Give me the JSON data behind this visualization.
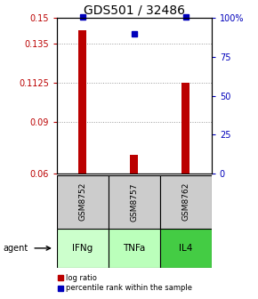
{
  "title": "GDS501 / 32486",
  "samples": [
    "GSM8752",
    "GSM8757",
    "GSM8762"
  ],
  "agents": [
    "IFNg",
    "TNFa",
    "IL4"
  ],
  "x_positions": [
    1,
    2,
    3
  ],
  "bar_values": [
    0.143,
    0.071,
    0.1125
  ],
  "bar_baseline": 0.06,
  "percentile_values": [
    0.1505,
    0.141,
    0.1505
  ],
  "left_ylim": [
    0.06,
    0.15
  ],
  "left_yticks": [
    0.06,
    0.09,
    0.1125,
    0.135,
    0.15
  ],
  "right_yticks": [
    0,
    25,
    50,
    75,
    100
  ],
  "bar_color": "#bb0000",
  "percentile_color": "#0000bb",
  "agent_colors": [
    "#ccffcc",
    "#bbffbb",
    "#44cc44"
  ],
  "sample_bg_color": "#cccccc",
  "grid_color": "#999999",
  "legend_bar_label": "log ratio",
  "legend_pct_label": "percentile rank within the sample",
  "title_fontsize": 10,
  "tick_fontsize": 7,
  "sample_fontsize": 6.5,
  "agent_fontsize": 7.5,
  "legend_fontsize": 6
}
